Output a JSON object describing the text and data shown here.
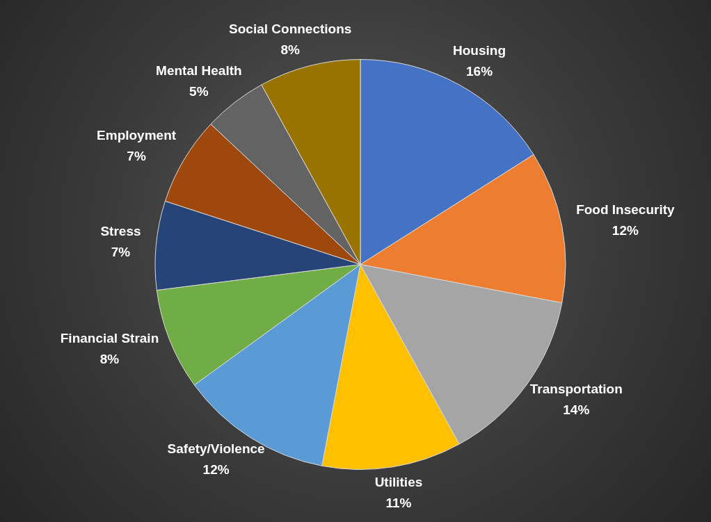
{
  "chart_data": {
    "type": "pie",
    "categories": [
      "Housing",
      "Food Insecurity",
      "Transportation",
      "Utilities",
      "Safety/Violence",
      "Financial Strain",
      "Stress",
      "Employment",
      "Mental Health",
      "Social Connections"
    ],
    "values": [
      16,
      12,
      14,
      11,
      12,
      8,
      7,
      7,
      5,
      8
    ],
    "value_labels": [
      "16%",
      "12%",
      "14%",
      "11%",
      "12%",
      "8%",
      "7%",
      "7%",
      "5%",
      "8%"
    ],
    "colors": [
      "#4472c4",
      "#ed7d31",
      "#a5a5a5",
      "#ffc000",
      "#5b9bd5",
      "#70ad47",
      "#264478",
      "#9e480e",
      "#636363",
      "#997300"
    ],
    "legend": false
  }
}
